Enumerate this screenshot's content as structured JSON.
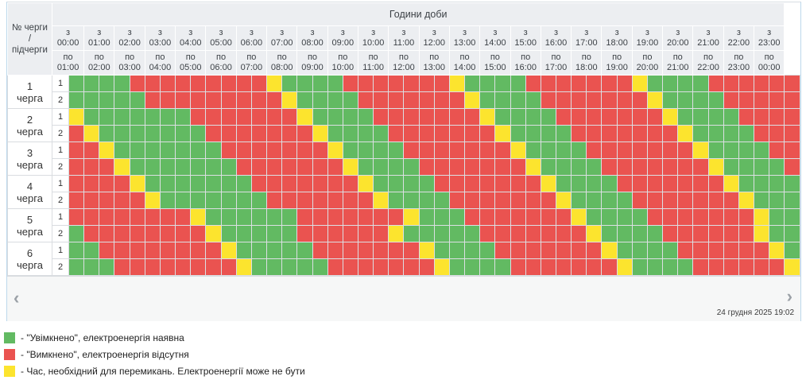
{
  "header": {
    "corner_label": "№ черги / підчерги",
    "hours_title": "Години доби",
    "from_prefix": "з",
    "to_prefix": "по",
    "start_times": [
      "00:00",
      "01:00",
      "02:00",
      "03:00",
      "04:00",
      "05:00",
      "06:00",
      "07:00",
      "08:00",
      "09:00",
      "10:00",
      "11:00",
      "12:00",
      "13:00",
      "14:00",
      "15:00",
      "16:00",
      "17:00",
      "18:00",
      "19:00",
      "20:00",
      "21:00",
      "22:00",
      "23:00"
    ],
    "end_times": [
      "01:00",
      "02:00",
      "03:00",
      "04:00",
      "05:00",
      "06:00",
      "07:00",
      "08:00",
      "09:00",
      "10:00",
      "11:00",
      "12:00",
      "13:00",
      "14:00",
      "15:00",
      "16:00",
      "17:00",
      "18:00",
      "19:00",
      "20:00",
      "21:00",
      "22:00",
      "23:00",
      "00:00"
    ]
  },
  "colors": {
    "on": "#62ba62",
    "off": "#ea5350",
    "maybe": "#fce42e"
  },
  "cell_states": {
    "G": "on",
    "R": "off",
    "Y": "maybe"
  },
  "queues": [
    {
      "number": "1",
      "word": "черга",
      "subqueues": [
        {
          "number": "1",
          "pattern": "GGGGRRRRRRRRRYGGGGRRRRRRRYGGGGRRRRRRRYGGGGRRRRRR"
        },
        {
          "number": "2",
          "pattern": "GGGGGRRRRRRRRRYGGGGRRRRRRRYGGGGRRRRRRRYGGGGRRRRR"
        }
      ]
    },
    {
      "number": "2",
      "word": "черга",
      "subqueues": [
        {
          "number": "1",
          "pattern": "YGGGGGGGRRRRRRRYGGGGRRRRRRRYGGGGRRRRRRRYGGGGRRRR"
        },
        {
          "number": "2",
          "pattern": "RYGGGGGGGRRRRRRRYGGGGRRRRRRRYGGGGRRRRRRRYGGGGRRR"
        }
      ]
    },
    {
      "number": "3",
      "word": "черга",
      "subqueues": [
        {
          "number": "1",
          "pattern": "RRYGGGGGGGRRRRRRRYGGGGRRRRRRRYGGGGRRRRRRRYGGGGRR"
        },
        {
          "number": "2",
          "pattern": "RRRYGGGGGGGRRRRRRRYGGGGRRRRRRRYGGGGRRRRRRRYGGGGR"
        }
      ]
    },
    {
      "number": "4",
      "word": "черга",
      "subqueues": [
        {
          "number": "1",
          "pattern": "RRRRYGGGGGGGRRRRRRRYGGGGRRRRRRRYGGGGRRRRRRRYGGGG"
        },
        {
          "number": "2",
          "pattern": "RRRRRYGGGGGGGRRRRRRRYGGGGRRRRRRRYGGGGRRRRRRRYGGG"
        }
      ]
    },
    {
      "number": "5",
      "word": "черга",
      "subqueues": [
        {
          "number": "1",
          "pattern": "RRRRRRRRYGGGGGGRRRRRRRYGGGRRRRRRRYGGGGRRRRRRRYGG"
        },
        {
          "number": "2",
          "pattern": "GRRRRRRRRYGGGGGRRRRRRYGGGGGRRRRRRRYGGGGRRRRRRYGG"
        }
      ]
    },
    {
      "number": "6",
      "word": "черга",
      "subqueues": [
        {
          "number": "1",
          "pattern": "GGRRRRRRRRYGGGGGRRRRRRRYGGGGRRRRRRRYGGGGRRRRRRYG"
        },
        {
          "number": "2",
          "pattern": "GGGRRRRRRRRYGGGGGRRRRRRRYGGGGRRRRRRRYGGGGRRRRRRY"
        }
      ]
    }
  ],
  "footer": {
    "prev": "‹",
    "next": "›",
    "timestamp": "24 грудня 2025 19:02"
  },
  "legend": [
    {
      "state": "on",
      "text": "- \"Увімкнено\", електроенергія наявна"
    },
    {
      "state": "off",
      "text": "- \"Вимкнено\", електроенергія відсутня"
    },
    {
      "state": "maybe",
      "text": "- Час, необхідний для перемикань. Електроенергії може не бути"
    }
  ]
}
